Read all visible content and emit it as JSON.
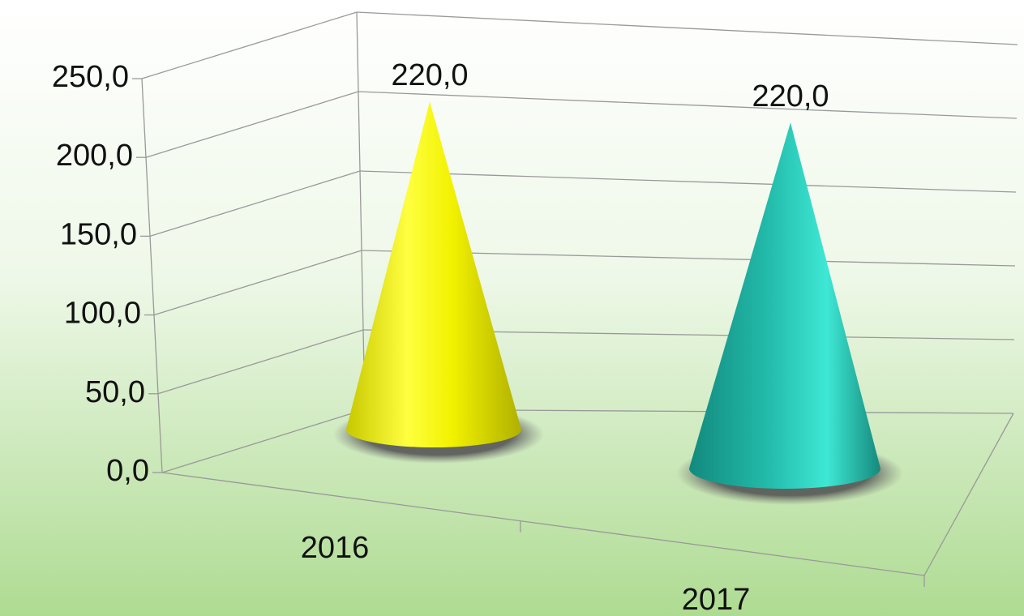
{
  "chart_data": {
    "type": "cone",
    "categories": [
      "2016",
      "2017"
    ],
    "values": [
      220,
      220
    ],
    "value_labels": [
      "220,0",
      "220,0"
    ],
    "colors": [
      "#f2f200",
      "#22b9a9"
    ],
    "ylim": [
      0,
      250
    ],
    "yticks": [
      {
        "value": 0,
        "label": "0,0"
      },
      {
        "value": 50,
        "label": "50,0"
      },
      {
        "value": 100,
        "label": "100,0"
      },
      {
        "value": 150,
        "label": "150,0"
      },
      {
        "value": 200,
        "label": "200,0"
      },
      {
        "value": 250,
        "label": "250,0"
      }
    ],
    "grid": true
  }
}
